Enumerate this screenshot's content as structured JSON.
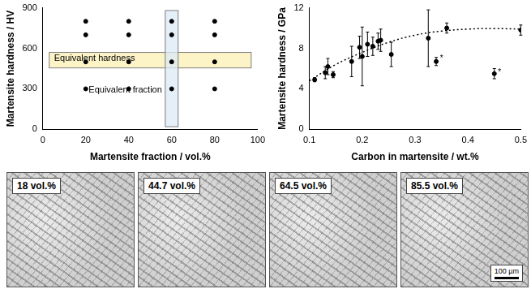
{
  "chart_data": [
    {
      "type": "scatter",
      "x_label": "Martensite fraction / vol.%",
      "y_label": "Martensite hardness / HV",
      "x": [
        20,
        20,
        20,
        20,
        40,
        40,
        40,
        40,
        60,
        60,
        60,
        60,
        80,
        80,
        80,
        80
      ],
      "values": [
        300,
        500,
        700,
        800,
        300,
        500,
        700,
        800,
        300,
        500,
        700,
        800,
        300,
        500,
        700,
        800
      ],
      "color": "#000000",
      "marker": "circle",
      "xlim": [
        0,
        100
      ],
      "xticks": [
        0,
        20,
        40,
        60,
        80,
        100
      ],
      "ylim": [
        0,
        900
      ],
      "yticks": [
        0,
        300,
        600,
        900
      ],
      "grid": false,
      "bands": [
        {
          "text": "Equivalent hardness",
          "x": [
            3,
            97
          ],
          "y": [
            455,
            570
          ],
          "color": "#fbefb4"
        },
        {
          "text": "Equivalent fraction",
          "x": [
            57,
            63
          ],
          "y": [
            20,
            880
          ],
          "color": "#dce9f6"
        }
      ]
    },
    {
      "type": "scatter",
      "x_label": "Carbon in martensite / wt.%",
      "y_label": "Martensite hardness / GPa",
      "xlim": [
        0.1,
        0.5
      ],
      "xticks": [
        0.1,
        0.2,
        0.3,
        0.4,
        0.5
      ],
      "ylim": [
        0,
        12
      ],
      "yticks": [
        0,
        4,
        8,
        12
      ],
      "grid": false,
      "series": [
        {
          "type": "scatter",
          "color": "#000000",
          "marker": "circle",
          "x": [
            0.11,
            0.13,
            0.135,
            0.145,
            0.18,
            0.195,
            0.2,
            0.21,
            0.22,
            0.23,
            0.235,
            0.255,
            0.325,
            0.34,
            0.36,
            0.45,
            0.5
          ],
          "values": [
            4.9,
            5.6,
            6.2,
            5.4,
            6.7,
            8.1,
            7.2,
            8.4,
            8.2,
            8.7,
            8.8,
            7.4,
            9.0,
            6.7,
            10.0,
            5.5,
            9.8
          ],
          "errors": [
            0.2,
            0.6,
            0.8,
            0.3,
            1.5,
            1.1,
            2.9,
            1.2,
            0.9,
            0.8,
            1.1,
            1.2,
            2.8,
            0.4,
            0.5,
            0.5,
            0.5
          ]
        },
        {
          "type": "line",
          "color": "#000000",
          "line_style": "dotted",
          "x": [
            0.1,
            0.15,
            0.2,
            0.25,
            0.3,
            0.35,
            0.4,
            0.45,
            0.5
          ],
          "values": [
            4.8,
            6.4,
            7.6,
            8.6,
            9.3,
            9.7,
            9.9,
            9.95,
            9.9
          ]
        }
      ],
      "annotations": [
        {
          "text": "*",
          "x": 0.35,
          "y": 7.0
        },
        {
          "text": "*",
          "x": 0.46,
          "y": 5.6
        }
      ]
    }
  ],
  "micrographs": [
    {
      "label": "18 vol.%"
    },
    {
      "label": "44.7 vol.%"
    },
    {
      "label": "64.5 vol.%"
    },
    {
      "label": "85.5 vol.%"
    }
  ],
  "scale_bar": "100 µm"
}
